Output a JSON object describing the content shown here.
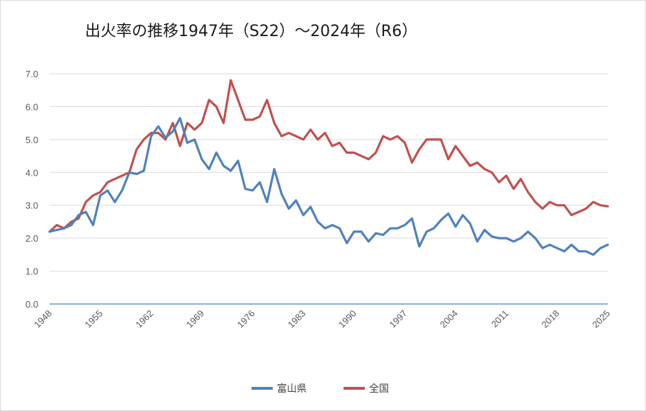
{
  "chart_data": {
    "type": "line",
    "title": "出火率の推移1947年（S22）～2024年（R6）",
    "xlabel": "",
    "ylabel": "",
    "xlim": [
      1948,
      2025
    ],
    "ylim": [
      0,
      7
    ],
    "y_ticks": [
      0,
      1,
      2,
      3,
      4,
      5,
      6,
      7
    ],
    "y_tick_labels": [
      "0.0",
      "1.0",
      "2.0",
      "3.0",
      "4.0",
      "5.0",
      "6.0",
      "7.0"
    ],
    "x_ticks": [
      1948,
      1955,
      1962,
      1969,
      1976,
      1983,
      1990,
      1997,
      2004,
      2011,
      2018,
      2025
    ],
    "x_tick_labels": [
      "1948",
      "1955",
      "1962",
      "1969",
      "1976",
      "1983",
      "1990",
      "1997",
      "2004",
      "2011",
      "2018",
      "2025"
    ],
    "grid": true,
    "legend_position": "bottom",
    "x": [
      1948,
      1949,
      1950,
      1951,
      1952,
      1953,
      1954,
      1955,
      1956,
      1957,
      1958,
      1959,
      1960,
      1961,
      1962,
      1963,
      1964,
      1965,
      1966,
      1967,
      1968,
      1969,
      1970,
      1971,
      1972,
      1973,
      1974,
      1975,
      1976,
      1977,
      1978,
      1979,
      1980,
      1981,
      1982,
      1983,
      1984,
      1985,
      1986,
      1987,
      1988,
      1989,
      1990,
      1991,
      1992,
      1993,
      1994,
      1995,
      1996,
      1997,
      1998,
      1999,
      2000,
      2001,
      2002,
      2003,
      2004,
      2005,
      2006,
      2007,
      2008,
      2009,
      2010,
      2011,
      2012,
      2013,
      2014,
      2015,
      2016,
      2017,
      2018,
      2019,
      2020,
      2021,
      2022,
      2023,
      2024,
      2025
    ],
    "series": [
      {
        "name": "富山県",
        "color": "#4f81bd",
        "values": [
          2.2,
          2.25,
          2.3,
          2.4,
          2.7,
          2.8,
          2.4,
          3.3,
          3.45,
          3.1,
          3.45,
          4.0,
          3.95,
          4.05,
          5.1,
          5.4,
          5.05,
          5.25,
          5.65,
          4.9,
          5.0,
          4.4,
          4.1,
          4.6,
          4.2,
          4.05,
          4.35,
          3.5,
          3.45,
          3.7,
          3.1,
          4.1,
          3.35,
          2.9,
          3.15,
          2.7,
          2.95,
          2.5,
          2.3,
          2.4,
          2.3,
          1.85,
          2.2,
          2.2,
          1.9,
          2.15,
          2.1,
          2.3,
          2.3,
          2.4,
          2.6,
          1.75,
          2.2,
          2.3,
          2.55,
          2.75,
          2.35,
          2.7,
          2.45,
          1.9,
          2.25,
          2.05,
          2.0,
          2.0,
          1.9,
          2.0,
          2.2,
          2.0,
          1.7,
          1.8,
          1.7,
          1.6,
          1.8,
          1.6,
          1.6,
          1.5,
          1.7,
          1.8
        ]
      },
      {
        "name": "全国",
        "color": "#c0504d",
        "values": [
          2.2,
          2.4,
          2.3,
          2.5,
          2.6,
          3.1,
          3.3,
          3.4,
          3.7,
          3.8,
          3.9,
          4.0,
          4.7,
          5.0,
          5.2,
          5.2,
          5.0,
          5.5,
          4.8,
          5.5,
          5.3,
          5.5,
          6.2,
          6.0,
          5.5,
          6.8,
          6.2,
          5.6,
          5.6,
          5.7,
          6.2,
          5.5,
          5.1,
          5.2,
          5.1,
          5.0,
          5.3,
          5.0,
          5.2,
          4.8,
          4.9,
          4.6,
          4.6,
          4.5,
          4.4,
          4.6,
          5.1,
          5.0,
          5.1,
          4.9,
          4.3,
          4.7,
          5.0,
          5.0,
          5.0,
          4.4,
          4.8,
          4.5,
          4.2,
          4.3,
          4.1,
          4.0,
          3.7,
          3.9,
          3.5,
          3.8,
          3.4,
          3.1,
          2.9,
          3.1,
          3.0,
          3.0,
          2.7,
          2.8,
          2.9,
          3.1,
          3.0,
          2.97
        ]
      }
    ]
  }
}
